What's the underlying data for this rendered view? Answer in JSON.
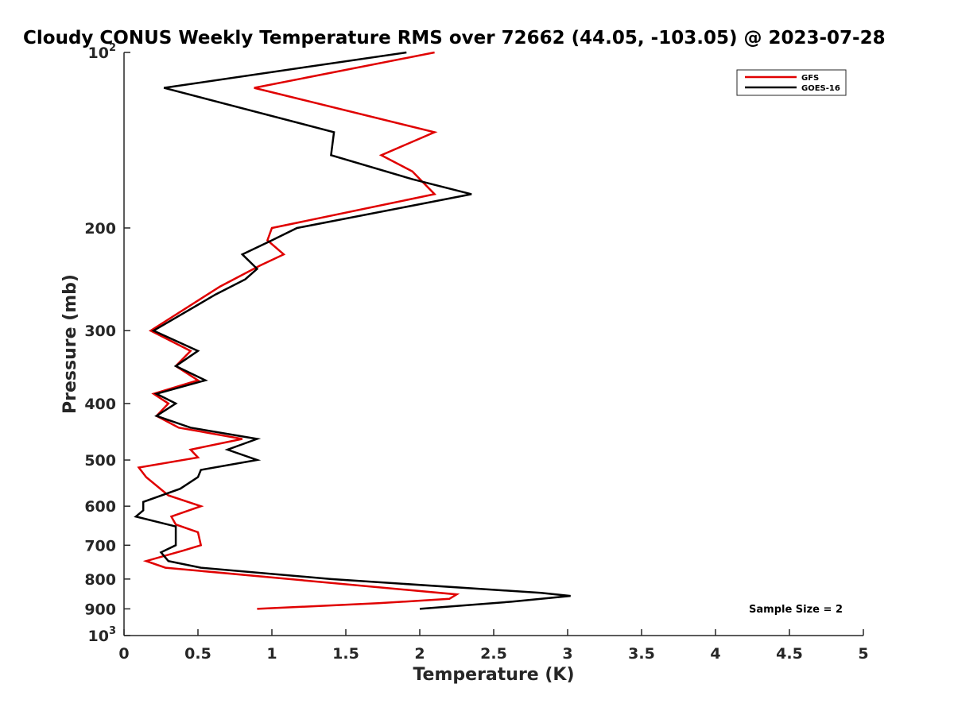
{
  "chart_data": {
    "type": "line",
    "title": "Cloudy CONUS Weekly Temperature RMS over 72662 (44.05, -103.05) @ 2023-07-28",
    "xlabel": "Temperature (K)",
    "ylabel": "Pressure (mb)",
    "xlim": [
      0,
      5
    ],
    "ylim": [
      100,
      1000
    ],
    "y_scale": "log",
    "y_reversed": true,
    "x_ticks": [
      0,
      0.5,
      1,
      1.5,
      2,
      2.5,
      3,
      3.5,
      4,
      4.5,
      5
    ],
    "x_tick_labels": [
      "0",
      "0.5",
      "1",
      "1.5",
      "2",
      "2.5",
      "3",
      "3.5",
      "4",
      "4.5",
      "5"
    ],
    "y_ticks": [
      100,
      200,
      300,
      400,
      500,
      600,
      700,
      800,
      900,
      1000
    ],
    "y_tick_labels": [
      {
        "base": "10",
        "exp": "2"
      },
      {
        "base": "200",
        "exp": ""
      },
      {
        "base": "300",
        "exp": ""
      },
      {
        "base": "400",
        "exp": ""
      },
      {
        "base": "500",
        "exp": ""
      },
      {
        "base": "600",
        "exp": ""
      },
      {
        "base": "700",
        "exp": ""
      },
      {
        "base": "800",
        "exp": ""
      },
      {
        "base": "900",
        "exp": ""
      },
      {
        "base": "10",
        "exp": "3"
      }
    ],
    "grid": false,
    "legend_position": "top-right",
    "series": [
      {
        "name": "GFS",
        "color": "#e00000",
        "points": [
          [
            2.1,
            100
          ],
          [
            0.88,
            115
          ],
          [
            2.1,
            137
          ],
          [
            1.74,
            150
          ],
          [
            1.95,
            160
          ],
          [
            2.1,
            175
          ],
          [
            1.0,
            200
          ],
          [
            0.97,
            210
          ],
          [
            1.08,
            222
          ],
          [
            0.92,
            232
          ],
          [
            0.65,
            252
          ],
          [
            0.18,
            300
          ],
          [
            0.45,
            325
          ],
          [
            0.35,
            345
          ],
          [
            0.5,
            365
          ],
          [
            0.2,
            385
          ],
          [
            0.3,
            400
          ],
          [
            0.22,
            420
          ],
          [
            0.37,
            440
          ],
          [
            0.8,
            460
          ],
          [
            0.45,
            480
          ],
          [
            0.5,
            495
          ],
          [
            0.1,
            515
          ],
          [
            0.15,
            535
          ],
          [
            0.3,
            575
          ],
          [
            0.52,
            600
          ],
          [
            0.32,
            625
          ],
          [
            0.35,
            645
          ],
          [
            0.5,
            665
          ],
          [
            0.52,
            700
          ],
          [
            0.4,
            715
          ],
          [
            0.15,
            745
          ],
          [
            0.28,
            765
          ],
          [
            2.25,
            850
          ],
          [
            2.2,
            865
          ],
          [
            1.72,
            880
          ],
          [
            0.9,
            900
          ]
        ]
      },
      {
        "name": "GOES-16",
        "color": "#000000",
        "points": [
          [
            1.91,
            100
          ],
          [
            0.27,
            115
          ],
          [
            1.42,
            137
          ],
          [
            1.4,
            150
          ],
          [
            1.95,
            165
          ],
          [
            2.35,
            175
          ],
          [
            1.17,
            200
          ],
          [
            1.0,
            210
          ],
          [
            0.8,
            222
          ],
          [
            0.9,
            235
          ],
          [
            0.82,
            245
          ],
          [
            0.62,
            260
          ],
          [
            0.2,
            300
          ],
          [
            0.5,
            325
          ],
          [
            0.35,
            345
          ],
          [
            0.55,
            365
          ],
          [
            0.22,
            385
          ],
          [
            0.35,
            400
          ],
          [
            0.22,
            420
          ],
          [
            0.45,
            440
          ],
          [
            0.9,
            460
          ],
          [
            0.7,
            480
          ],
          [
            0.9,
            500
          ],
          [
            0.52,
            520
          ],
          [
            0.5,
            535
          ],
          [
            0.38,
            560
          ],
          [
            0.13,
            590
          ],
          [
            0.13,
            610
          ],
          [
            0.08,
            625
          ],
          [
            0.35,
            650
          ],
          [
            0.35,
            700
          ],
          [
            0.25,
            720
          ],
          [
            0.3,
            745
          ],
          [
            0.52,
            765
          ],
          [
            1.4,
            800
          ],
          [
            2.82,
            845
          ],
          [
            3.02,
            855
          ],
          [
            2.62,
            875
          ],
          [
            2.0,
            900
          ]
        ]
      }
    ],
    "legend": [
      {
        "label": "GFS",
        "color": "#e00000"
      },
      {
        "label": "GOES-16",
        "color": "#000000"
      }
    ],
    "annotation": "Sample Size = 2"
  }
}
